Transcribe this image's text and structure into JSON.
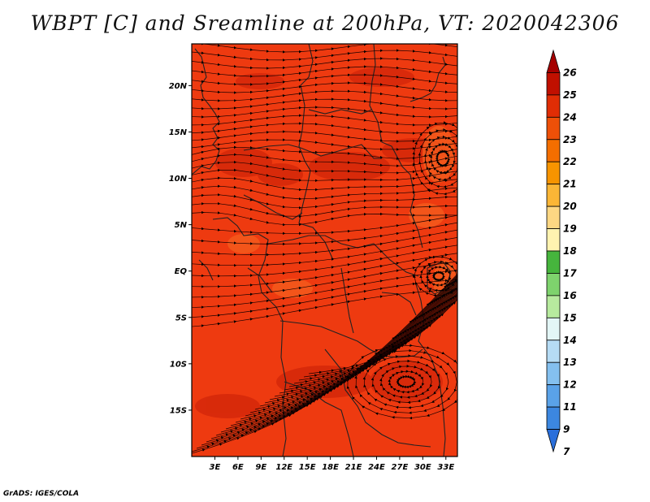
{
  "title": "WBPT [C] and Sreamline at 200hPa, VT: 2020042306",
  "footer": "GrADS: IGES/COLA",
  "map": {
    "lat_labels": [
      "20N",
      "15N",
      "10N",
      "5N",
      "EQ",
      "5S",
      "10S",
      "15S"
    ],
    "lat_values": [
      20,
      15,
      10,
      5,
      0,
      -5,
      -10,
      -15
    ],
    "lon_labels": [
      "3E",
      "6E",
      "9E",
      "12E",
      "15E",
      "18E",
      "21E",
      "24E",
      "27E",
      "30E",
      "33E"
    ],
    "lon_values": [
      3,
      6,
      9,
      12,
      15,
      18,
      21,
      24,
      27,
      30,
      33
    ],
    "extent": {
      "lon_min": 0,
      "lon_max": 34.5,
      "lat_min": -20,
      "lat_max": 24.5
    },
    "field_colors": {
      "base": "#ee3a10",
      "high": "#d82a0a",
      "low": "#f25018"
    }
  },
  "colorbar": {
    "levels": [
      "26",
      "25",
      "24",
      "23",
      "22",
      "21",
      "20",
      "19",
      "18",
      "17",
      "16",
      "15",
      "14",
      "13",
      "12",
      "11",
      "9",
      "7"
    ],
    "colors": [
      "#a50000",
      "#c01000",
      "#e02d05",
      "#ee5008",
      "#f46e00",
      "#f79400",
      "#fbb636",
      "#fdd783",
      "#fff3b0",
      "#46b53d",
      "#7ed36d",
      "#b7ea9e",
      "#e3f6f6",
      "#b6dcf5",
      "#84c0ef",
      "#5aa2e8",
      "#3c87e0",
      "#2a6fdb"
    ]
  }
}
